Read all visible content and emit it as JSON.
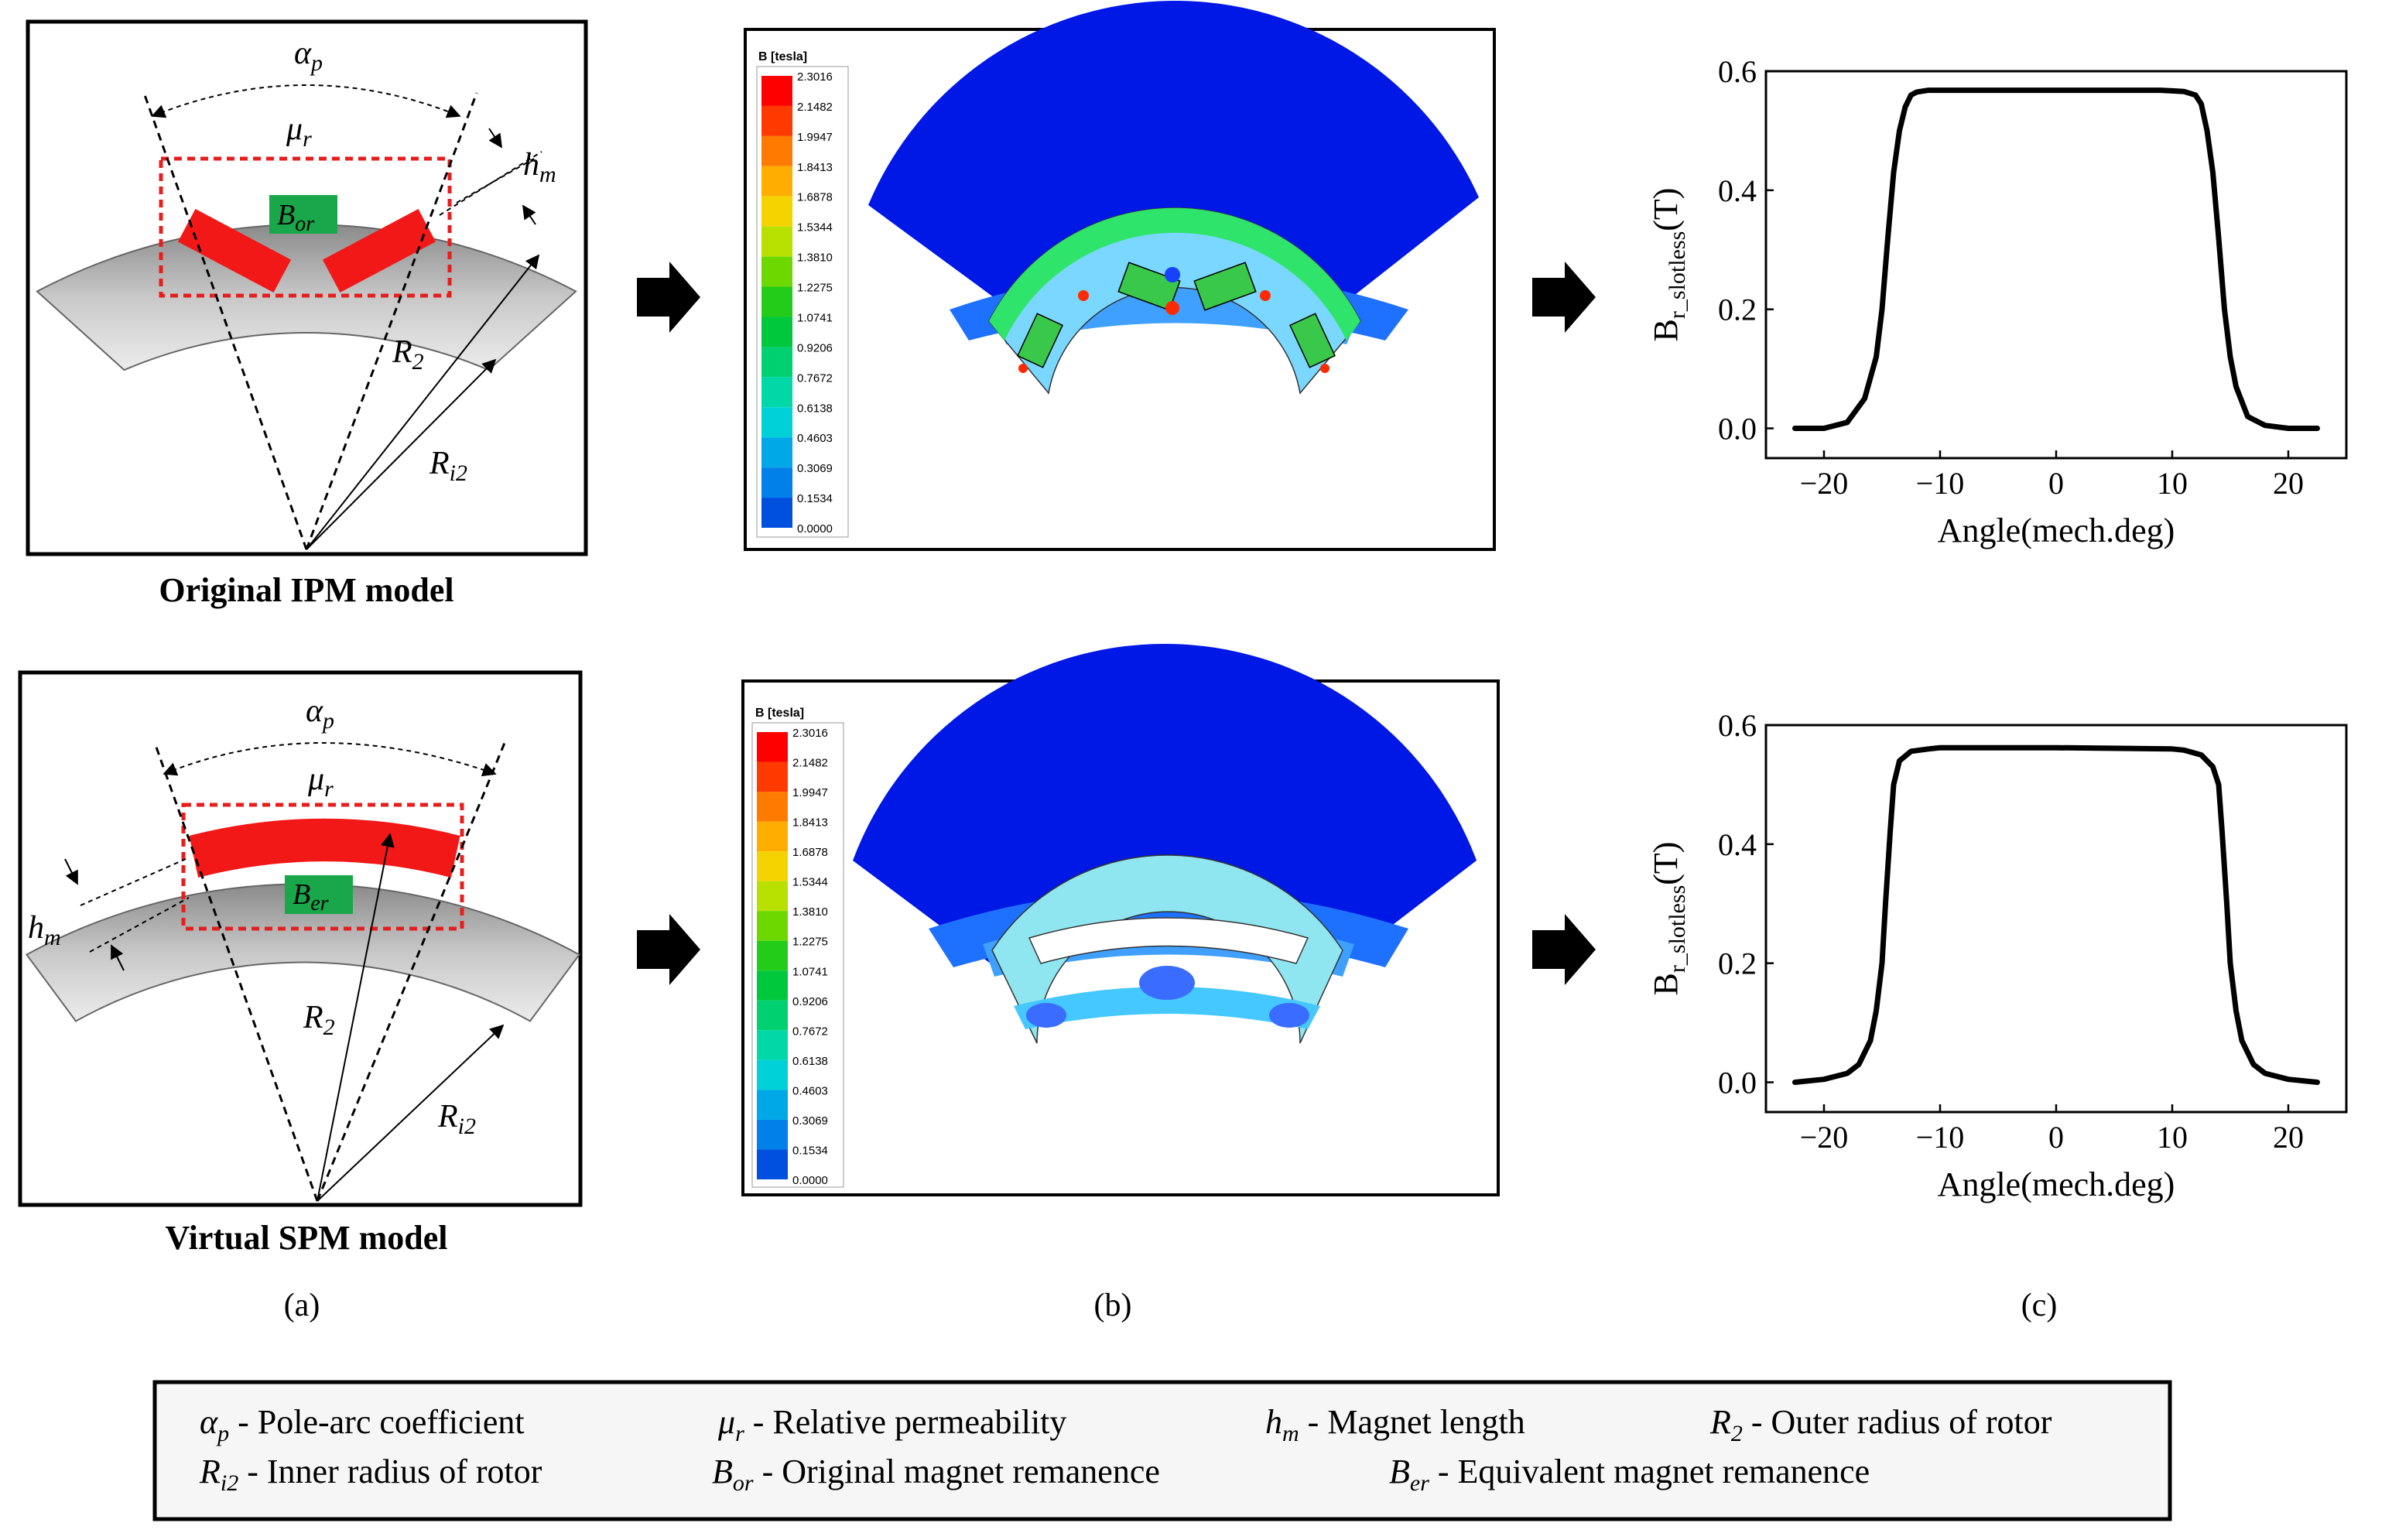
{
  "panels": {
    "a": {
      "caption": "(a)",
      "ipm_title": "Original  IPM model",
      "spm_title": "Virtual SPM model",
      "labels": {
        "alpha_sym": "α",
        "alpha_sub": "p",
        "mu_sym": "μ",
        "mu_sub": "r",
        "hm_sym": "h",
        "hm_sub": "m",
        "r2_sym": "R",
        "r2_sub": "2",
        "ri2_sym": "R",
        "ri2_sub": "i2",
        "bor_sym": "B",
        "bor_sub": "or",
        "ber_sym": "B",
        "ber_sub": "er"
      }
    },
    "b": {
      "caption": "(b)",
      "legend_title": "B [tesla]",
      "legend_values": [
        "2.3016",
        "2.1482",
        "1.9947",
        "1.8413",
        "1.6878",
        "1.5344",
        "1.3810",
        "1.2275",
        "1.0741",
        "0.9206",
        "0.7672",
        "0.6138",
        "0.4603",
        "0.3069",
        "0.1534",
        "0.0000"
      ],
      "legend_colors": [
        "#ff0000",
        "#ff3a00",
        "#ff7a00",
        "#ffae00",
        "#f4d300",
        "#b8e000",
        "#6cd800",
        "#22cc18",
        "#00c83c",
        "#00d070",
        "#00d8a8",
        "#00d0d8",
        "#00a8e8",
        "#0080e8",
        "#0050e0",
        "#0000d8"
      ]
    },
    "c": {
      "caption": "(c)",
      "chart_data": [
        {
          "type": "line",
          "title": "",
          "xlabel": "Angle(mech.deg)",
          "ylabel_main": "B",
          "ylabel_sub": "r_slotless",
          "ylabel_unit": "(T)",
          "xlim": [
            -25,
            25
          ],
          "ylim": [
            -0.05,
            0.6
          ],
          "xticks": [
            -20,
            -10,
            0,
            10,
            20
          ],
          "xtick_labels": [
            "−20",
            "−10",
            "0",
            "10",
            "20"
          ],
          "yticks": [
            0.0,
            0.2,
            0.4,
            0.6
          ],
          "ytick_labels": [
            "0.0",
            "0.2",
            "0.4",
            "0.6"
          ],
          "series": [
            {
              "name": "IPM",
              "x": [
                -22.5,
                -20,
                -18,
                -16.5,
                -15.5,
                -15,
                -14.5,
                -14,
                -13.5,
                -13,
                -12.5,
                -12,
                -11,
                -10,
                -5,
                0,
                5,
                9,
                10,
                11,
                12,
                12.5,
                13,
                13.5,
                14,
                14.5,
                15,
                15.5,
                16.5,
                18,
                20,
                22.5
              ],
              "y": [
                0.0,
                0.0,
                0.01,
                0.05,
                0.12,
                0.2,
                0.32,
                0.43,
                0.5,
                0.54,
                0.56,
                0.565,
                0.568,
                0.568,
                0.568,
                0.568,
                0.568,
                0.568,
                0.567,
                0.566,
                0.56,
                0.545,
                0.5,
                0.43,
                0.32,
                0.2,
                0.12,
                0.07,
                0.02,
                0.005,
                0.0,
                0.0
              ]
            }
          ]
        },
        {
          "type": "line",
          "title": "",
          "xlabel": "Angle(mech.deg)",
          "ylabel_main": "B",
          "ylabel_sub": "r_slotless",
          "ylabel_unit": "(T)",
          "xlim": [
            -25,
            25
          ],
          "ylim": [
            -0.05,
            0.6
          ],
          "xticks": [
            -20,
            -10,
            0,
            10,
            20
          ],
          "xtick_labels": [
            "−20",
            "−10",
            "0",
            "10",
            "20"
          ],
          "yticks": [
            0.0,
            0.2,
            0.4,
            0.6
          ],
          "ytick_labels": [
            "0.0",
            "0.2",
            "0.4",
            "0.6"
          ],
          "series": [
            {
              "name": "SPM",
              "x": [
                -22.5,
                -20,
                -18,
                -17,
                -16,
                -15.5,
                -15,
                -14.7,
                -14.3,
                -14,
                -13.5,
                -12.5,
                -11,
                -10,
                0,
                10,
                11,
                12.5,
                13.5,
                14,
                14.3,
                14.7,
                15,
                15.5,
                16,
                17,
                18,
                20,
                22.5
              ],
              "y": [
                0.0,
                0.005,
                0.015,
                0.03,
                0.07,
                0.12,
                0.2,
                0.3,
                0.42,
                0.5,
                0.54,
                0.556,
                0.56,
                0.562,
                0.562,
                0.56,
                0.558,
                0.55,
                0.53,
                0.5,
                0.42,
                0.3,
                0.2,
                0.12,
                0.07,
                0.03,
                0.015,
                0.005,
                0.0
              ]
            }
          ]
        }
      ]
    }
  },
  "legend_box": {
    "row1": [
      {
        "sym": "α",
        "sub": "p",
        "text": " - Pole-arc coefficient"
      },
      {
        "sym": "μ",
        "sub": "r",
        "text": " - Relative permeability"
      },
      {
        "sym": "h",
        "sub": "m",
        "text": " - Magnet length"
      },
      {
        "sym": "R",
        "sub": "2",
        "text": " - Outer radius of rotor"
      }
    ],
    "row2": [
      {
        "sym": "R",
        "sub": "i2",
        "text": " - Inner radius of rotor"
      },
      {
        "sym": "B",
        "sub": "or",
        "text": " - Original magnet remanence"
      },
      {
        "sym": "B",
        "sub": "er",
        "text": " - Equivalent magnet remanence"
      }
    ]
  },
  "colors": {
    "magnet_red": "#f21818",
    "remanence_green": "#1aa64a",
    "field_blue": "#0018e6",
    "rotor_gray": "#9c9c9c"
  }
}
